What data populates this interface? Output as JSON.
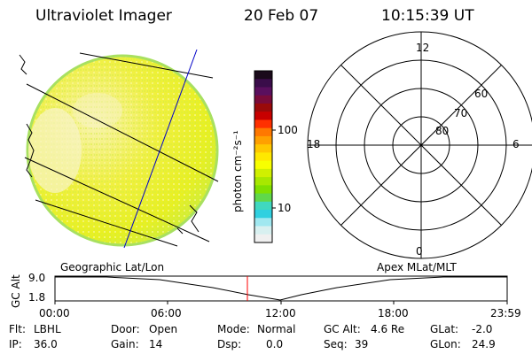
{
  "header": {
    "instrument": "Ultraviolet Imager",
    "date": "20 Feb 07",
    "time": "10:15:39 UT"
  },
  "colorbar": {
    "unit_label": "photon cm⁻²s⁻¹",
    "tick_labels": [
      "100",
      "10"
    ],
    "colors": [
      "#1a0a1a",
      "#3a0d4a",
      "#5a0f5e",
      "#7a0b3a",
      "#9a0a0a",
      "#c80000",
      "#ff3000",
      "#ff7800",
      "#ffa000",
      "#ffc800",
      "#ffe800",
      "#f8ff00",
      "#d0f000",
      "#a8e800",
      "#80e000",
      "#60d84a",
      "#40d8c0",
      "#30d0e0",
      "#a0e8f0",
      "#d8f0f0",
      "#f0f0f0"
    ]
  },
  "polar": {
    "top_label": "12",
    "bottom_label": "0",
    "left_label": "18",
    "right_label": "6",
    "lat_labels": [
      "60",
      "70",
      "80"
    ]
  },
  "panel_labels": {
    "left": "Geographic Lat/Lon",
    "right": "Apex MLat/MLT"
  },
  "altitude_plot": {
    "ylabel": "GC Alt",
    "y_ticks": [
      "9.0",
      "1.8"
    ],
    "x_ticks": [
      "00:00",
      "06:00",
      "12:00",
      "18:00",
      "23:59"
    ],
    "marker_time": "10:15"
  },
  "status": {
    "flt_label": "Flt:",
    "flt_value": "LBHL",
    "ip_label": "IP:",
    "ip_value": "36.0",
    "door_label": "Door:",
    "door_value": "Open",
    "gain_label": "Gain:",
    "gain_value": "14",
    "mode_label": "Mode:",
    "mode_value": "Normal",
    "dsp_label": "Dsp:",
    "dsp_value": "0.0",
    "gcalt_label": "GC Alt:",
    "gcalt_value": "4.6 Re",
    "seq_label": "Seq:",
    "seq_value": "39",
    "glat_label": "GLat:",
    "glat_value": "-2.0",
    "glon_label": "GLon:",
    "glon_value": "24.9"
  },
  "colors": {
    "disk_fill": "#eef040",
    "disk_fill_light": "#f6f0a0",
    "disk_edge": "#a8e060",
    "marker": "#ff0000",
    "meridian": "#0000c8"
  }
}
